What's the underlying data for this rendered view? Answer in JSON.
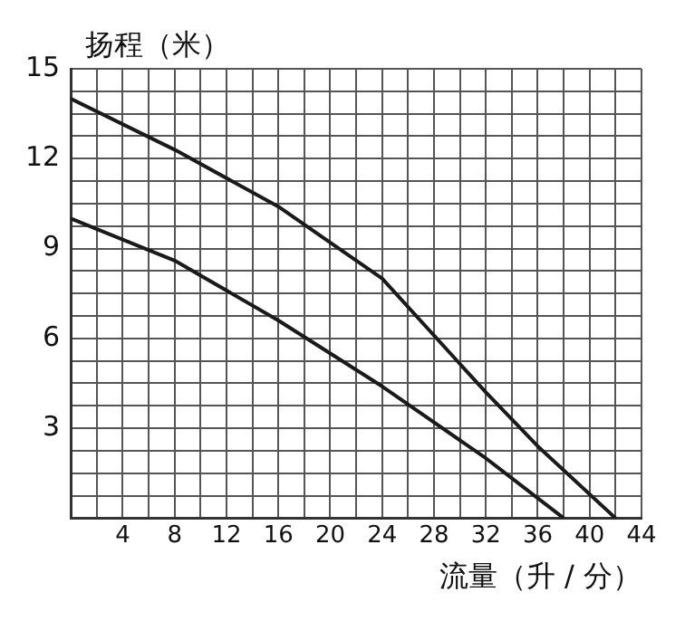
{
  "chart_data": {
    "type": "line",
    "xlabel": "流量（升 / 分）",
    "ylabel": "扬程（米）",
    "xlim": [
      0,
      44
    ],
    "ylim": [
      0,
      15
    ],
    "xticks": [
      {
        "value": 0,
        "label": null
      },
      {
        "value": 2,
        "label": null
      },
      4,
      {
        "value": 6,
        "label": null
      },
      8,
      {
        "value": 10,
        "label": null
      },
      12,
      {
        "value": 14,
        "label": null
      },
      16,
      {
        "value": 18,
        "label": null
      },
      20,
      {
        "value": 22,
        "label": null
      },
      24,
      {
        "value": 26,
        "label": null
      },
      28,
      {
        "value": 30,
        "label": null
      },
      32,
      {
        "value": 34,
        "label": null
      },
      36,
      {
        "value": 38,
        "label": null
      },
      40,
      {
        "value": 42,
        "label": null
      },
      44
    ],
    "yticks": [
      {
        "value": 0,
        "label": null
      },
      {
        "value": 0.75,
        "label": null
      },
      {
        "value": 1.5,
        "label": null
      },
      {
        "value": 2.25,
        "label": null
      },
      3,
      {
        "value": 3.75,
        "label": null
      },
      {
        "value": 4.5,
        "label": null
      },
      {
        "value": 5.25,
        "label": null
      },
      6,
      {
        "value": 6.75,
        "label": null
      },
      {
        "value": 7.5,
        "label": null
      },
      {
        "value": 8.25,
        "label": null
      },
      9,
      {
        "value": 9.75,
        "label": null
      },
      {
        "value": 10.5,
        "label": null
      },
      {
        "value": 11.25,
        "label": null
      },
      12,
      {
        "value": 12.75,
        "label": null
      },
      {
        "value": 13.5,
        "label": null
      },
      {
        "value": 14.25,
        "label": null
      },
      15
    ],
    "grid": true,
    "legend": false,
    "marker": "none",
    "line_style": "solid",
    "series": [
      {
        "color": "#1a1a1a",
        "x": [
          0,
          8,
          16,
          24,
          32,
          36,
          42
        ],
        "values": [
          14,
          12.3,
          10.4,
          8,
          4.2,
          2.4,
          0
        ]
      },
      {
        "color": "#1a1a1a",
        "x": [
          0,
          8,
          16,
          24,
          32,
          38
        ],
        "values": [
          10,
          8.6,
          6.6,
          4.4,
          2,
          0
        ]
      }
    ]
  }
}
